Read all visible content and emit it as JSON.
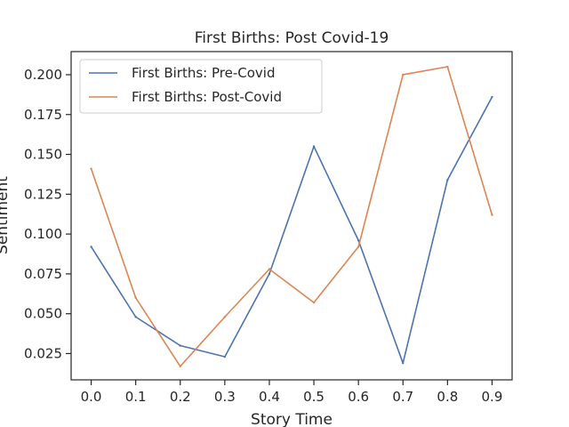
{
  "chart_data": {
    "type": "line",
    "title": "First Births: Post Covid-19",
    "xlabel": "Story Time",
    "ylabel": "Sentiment",
    "xlim": [
      -0.045,
      0.945
    ],
    "ylim": [
      0.0085,
      0.2145
    ],
    "x": [
      0.0,
      0.1,
      0.2,
      0.3,
      0.4,
      0.5,
      0.6,
      0.7,
      0.8,
      0.9
    ],
    "x_ticks": [
      "0.0",
      "0.1",
      "0.2",
      "0.3",
      "0.4",
      "0.5",
      "0.6",
      "0.7",
      "0.8",
      "0.9"
    ],
    "y_ticks": [
      "0.025",
      "0.050",
      "0.075",
      "0.100",
      "0.125",
      "0.150",
      "0.175",
      "0.200"
    ],
    "grid": false,
    "legend_position": "top-left",
    "series": [
      {
        "name": "First Births: Pre-Covid",
        "color": "#4c72b0",
        "values": [
          0.092,
          0.048,
          0.03,
          0.023,
          0.075,
          0.155,
          0.096,
          0.019,
          0.134,
          0.186
        ]
      },
      {
        "name": "First Births: Post-Covid",
        "color": "#dd8452",
        "values": [
          0.141,
          0.06,
          0.017,
          0.048,
          0.078,
          0.057,
          0.092,
          0.2,
          0.205,
          0.112
        ]
      }
    ]
  }
}
